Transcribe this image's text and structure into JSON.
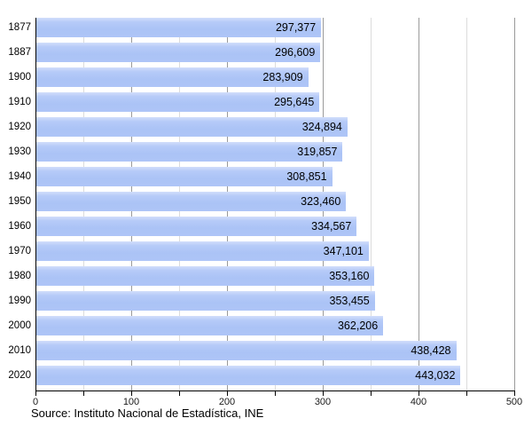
{
  "chart_data": {
    "type": "bar",
    "orientation": "horizontal",
    "title": "",
    "xlabel": "",
    "ylabel": "",
    "categories": [
      "1877",
      "1887",
      "1900",
      "1910",
      "1920",
      "1930",
      "1940",
      "1950",
      "1960",
      "1970",
      "1980",
      "1990",
      "2000",
      "2010",
      "2020"
    ],
    "values": [
      297377,
      296609,
      283909,
      295645,
      324894,
      319857,
      308851,
      323460,
      334567,
      347101,
      353160,
      353455,
      362206,
      438428,
      443032
    ],
    "value_labels": [
      "297,377",
      "296,609",
      "283,909",
      "295,645",
      "324,894",
      "319,857",
      "308,851",
      "323,460",
      "334,567",
      "347,101",
      "353,160",
      "353,455",
      "362,206",
      "438,428",
      "443,032"
    ],
    "x_axis_scale": "thousands",
    "xlim_thousands": [
      0,
      500
    ],
    "x_major_ticks": [
      "0",
      "100",
      "200",
      "300",
      "400",
      "500"
    ],
    "x_minor_tick_interval_thousands": 50,
    "grid": true,
    "legend": "none",
    "bar_color": "#aec5f7",
    "bar_gradient_top": "#d2defb",
    "gridline_minor_color": "#dcdcdc",
    "gridline_major_color": "#9a9a9a",
    "axis_color": "#000000"
  },
  "source": {
    "note": "Source: Instituto Nacional de Estadística, INE"
  }
}
